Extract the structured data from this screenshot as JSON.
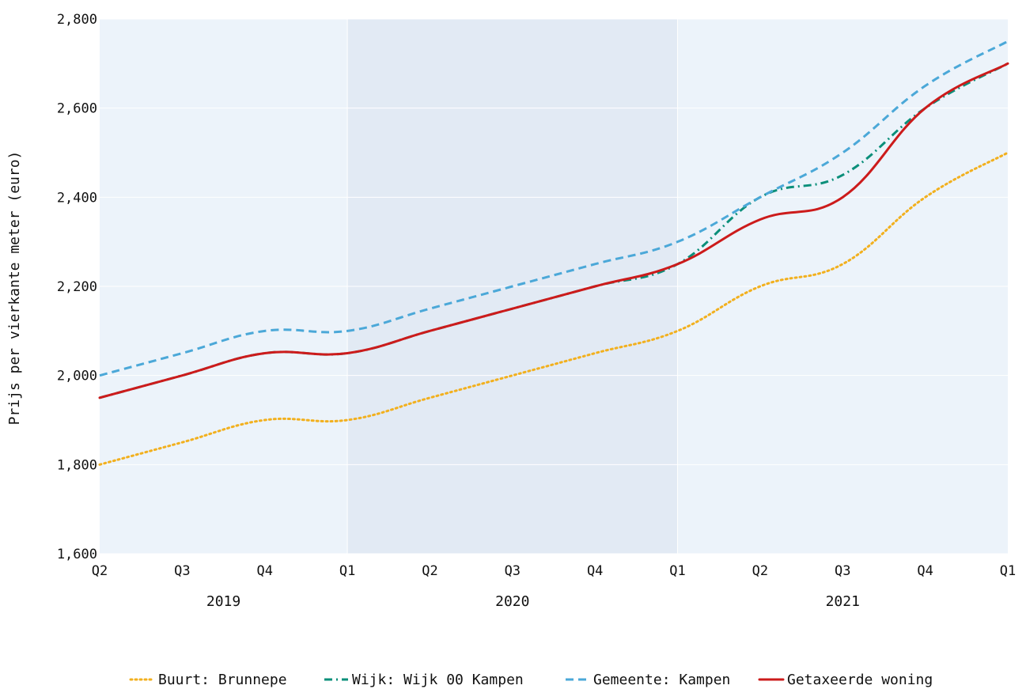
{
  "chart_data": {
    "type": "line",
    "title": "",
    "xlabel": "",
    "ylabel": "Prijs per vierkante meter (euro)",
    "ylim": [
      1600,
      2800
    ],
    "y_ticks": [
      {
        "value": 1600,
        "label": "1,600"
      },
      {
        "value": 1800,
        "label": "1,800"
      },
      {
        "value": 2000,
        "label": "2,000"
      },
      {
        "value": 2200,
        "label": "2,200"
      },
      {
        "value": 2400,
        "label": "2,400"
      },
      {
        "value": 2600,
        "label": "2,600"
      },
      {
        "value": 2800,
        "label": "2,800"
      }
    ],
    "categories": [
      "Q2",
      "Q3",
      "Q4",
      "Q1",
      "Q2",
      "Q3",
      "Q4",
      "Q1",
      "Q2",
      "Q3",
      "Q4",
      "Q1"
    ],
    "years": [
      {
        "label": "2019",
        "start": 0,
        "end": 3
      },
      {
        "label": "2020",
        "start": 3,
        "end": 7
      },
      {
        "label": "2021",
        "start": 7,
        "end": 11
      }
    ],
    "shaded_band": {
      "start": 3,
      "end": 7
    },
    "grid": true,
    "legend_position": "bottom",
    "series": [
      {
        "name": "Buurt: Brunnepe",
        "color": "#f2b01e",
        "dash": "dotted",
        "values": [
          1800,
          1850,
          1900,
          1900,
          1950,
          2000,
          2050,
          2100,
          2200,
          2250,
          2400,
          2500
        ]
      },
      {
        "name": "Wijk: Wijk 00 Kampen",
        "color": "#0b8f7a",
        "dash": "dashdot",
        "values": [
          1950,
          2000,
          2050,
          2050,
          2100,
          2150,
          2200,
          2250,
          2400,
          2450,
          2600,
          2700
        ]
      },
      {
        "name": "Gemeente: Kampen",
        "color": "#4ba8d8",
        "dash": "dashed",
        "values": [
          2000,
          2050,
          2100,
          2100,
          2150,
          2200,
          2250,
          2300,
          2400,
          2500,
          2650,
          2750
        ]
      },
      {
        "name": "Getaxeerde woning",
        "color": "#cc1b1b",
        "dash": "solid",
        "values": [
          1950,
          2000,
          2050,
          2050,
          2100,
          2150,
          2200,
          2250,
          2350,
          2400,
          2600,
          2700
        ]
      }
    ]
  }
}
